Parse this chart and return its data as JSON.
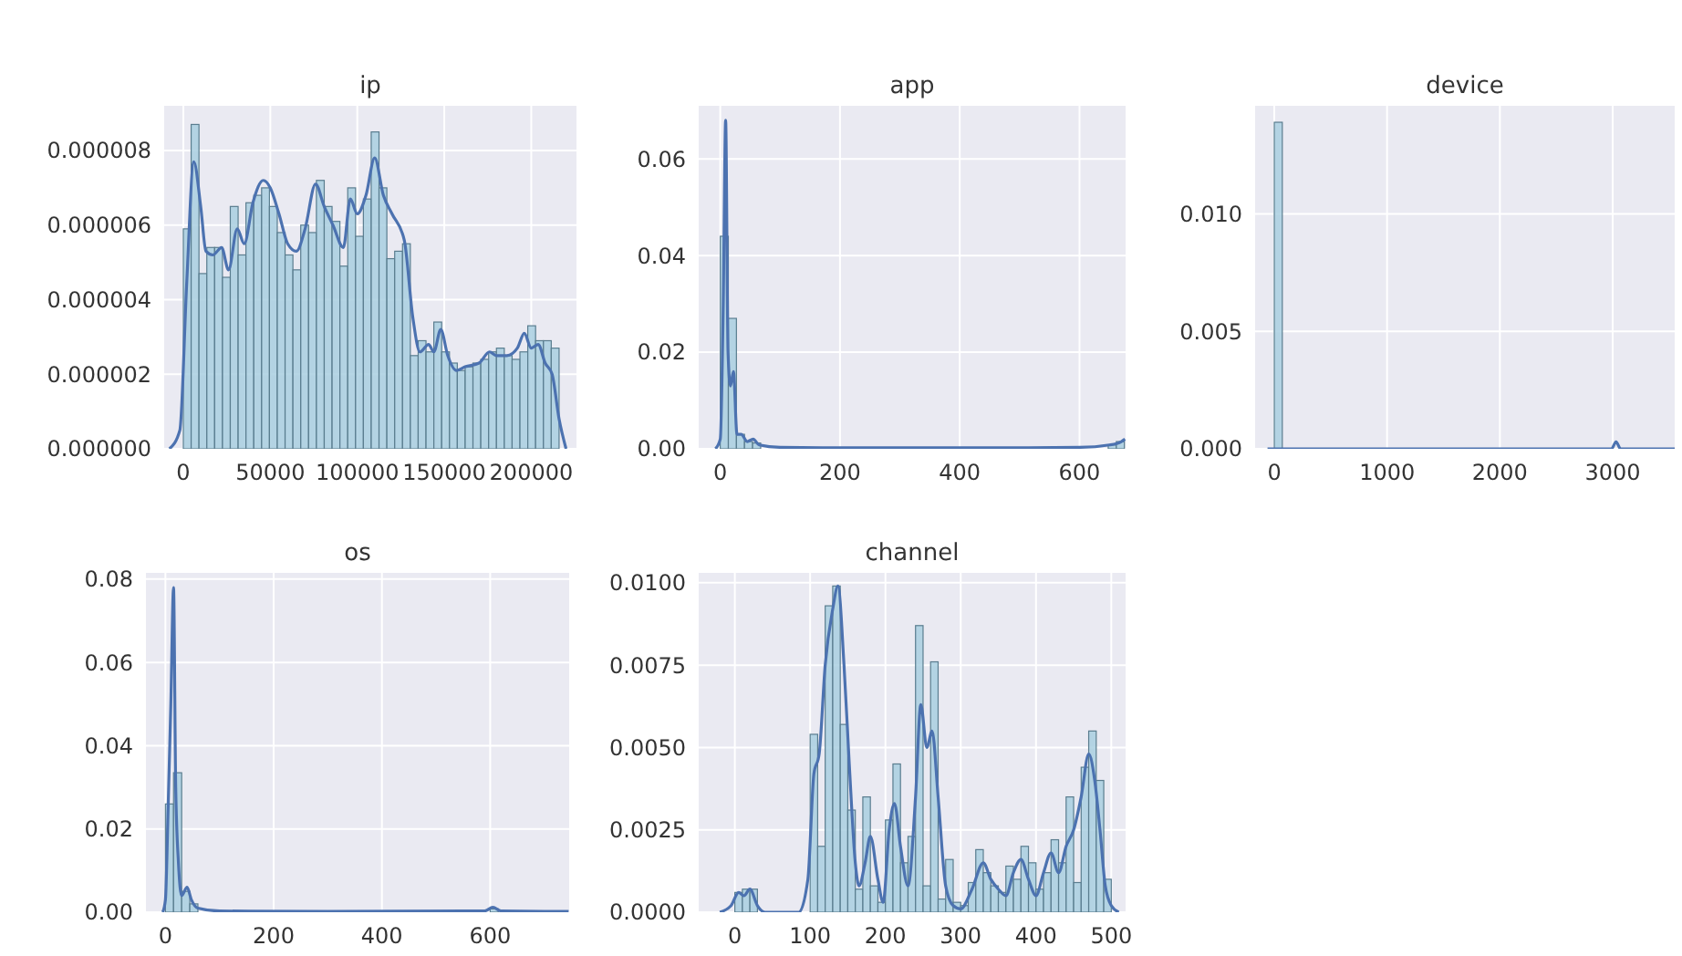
{
  "chart_data": [
    {
      "type": "histogram",
      "title": "ip",
      "color": "#a9cfe0",
      "grid": true,
      "bins": [
        0,
        4500,
        9000,
        13500,
        18000,
        22500,
        27000,
        31500,
        36000,
        40500,
        45000,
        49500,
        54000,
        58500,
        63000,
        67500,
        72000,
        76500,
        81000,
        85500,
        90000,
        94500,
        99000,
        103500,
        108000,
        112500,
        117000,
        121500,
        126000,
        130500,
        135000,
        139500,
        144000,
        148500,
        153000,
        157500,
        162000,
        166500,
        171000,
        175500,
        180000,
        184500,
        189000,
        193500,
        198000,
        202500,
        207000,
        211500,
        216000
      ],
      "values": [
        5.9e-06,
        8.7e-06,
        4.7e-06,
        5.4e-06,
        5.4e-06,
        4.6e-06,
        6.5e-06,
        5.2e-06,
        6.6e-06,
        6.8e-06,
        7e-06,
        6.5e-06,
        5.8e-06,
        5.2e-06,
        4.8e-06,
        6e-06,
        5.8e-06,
        7.2e-06,
        6.5e-06,
        6.1e-06,
        4.9e-06,
        7e-06,
        5.7e-06,
        6.7e-06,
        8.5e-06,
        7e-06,
        5.1e-06,
        5.3e-06,
        5.5e-06,
        2.5e-06,
        2.9e-06,
        2.6e-06,
        3.4e-06,
        2.6e-06,
        2.3e-06,
        2.1e-06,
        2.2e-06,
        2.3e-06,
        2.4e-06,
        2.6e-06,
        2.7e-06,
        2.5e-06,
        2.4e-06,
        2.6e-06,
        3.3e-06,
        2.9e-06,
        2.9e-06,
        2.7e-06
      ],
      "series": [
        {
          "type": "line",
          "color": "#4c72b0",
          "x": [
            -8000,
            -2000,
            2000,
            6000,
            10000,
            13000,
            17000,
            22000,
            26000,
            31000,
            35000,
            40000,
            46000,
            50000,
            55000,
            60000,
            65000,
            70000,
            76000,
            81000,
            86000,
            92000,
            96000,
            100000,
            105000,
            110000,
            115000,
            120000,
            127000,
            132000,
            136000,
            141000,
            144000,
            148000,
            152000,
            157000,
            162000,
            170000,
            176000,
            180000,
            186000,
            192000,
            196000,
            200000,
            204000,
            208000,
            212000,
            216000,
            220000
          ],
          "values": [
            0,
            5e-07,
            4.5e-06,
            7.7e-06,
            6.5e-06,
            5.3e-06,
            5.2e-06,
            5.4e-06,
            4.8e-06,
            5.9e-06,
            5.5e-06,
            6.6e-06,
            7.2e-06,
            7e-06,
            6.3e-06,
            5.5e-06,
            5.3e-06,
            5.9e-06,
            7.1e-06,
            6.5e-06,
            6e-06,
            5.4e-06,
            6.7e-06,
            6.3e-06,
            6.8e-06,
            7.8e-06,
            6.8e-06,
            6.3e-06,
            5.6e-06,
            3.5e-06,
            2.6e-06,
            2.8e-06,
            2.6e-06,
            3.2e-06,
            2.5e-06,
            2.1e-06,
            2.2e-06,
            2.3e-06,
            2.6e-06,
            2.5e-06,
            2.5e-06,
            2.7e-06,
            3.1e-06,
            2.7e-06,
            2.8e-06,
            2.3e-06,
            2e-06,
            8e-07,
            0
          ]
        }
      ],
      "xlim": [
        -11000,
        226000
      ],
      "xticks": [
        0,
        50000,
        100000,
        150000,
        200000
      ],
      "ylim": [
        0,
        9.2e-06
      ],
      "yticks": [
        {
          "value": 0,
          "label": "0.000000"
        },
        {
          "value": 2e-06,
          "label": "0.000002"
        },
        {
          "value": 4e-06,
          "label": "0.000004"
        },
        {
          "value": 6e-06,
          "label": "0.000006"
        },
        {
          "value": 8e-06,
          "label": "0.000008"
        }
      ]
    },
    {
      "type": "histogram",
      "title": "app",
      "color": "#a9cfe0",
      "grid": true,
      "bins": [
        0,
        13.5,
        27,
        40.5,
        54,
        67.5,
        81,
        94.5,
        108,
        121.5,
        135,
        148.5,
        162,
        175.5,
        189,
        202.5,
        216,
        229.5,
        243,
        256.5,
        270,
        283.5,
        297,
        310.5,
        324,
        337.5,
        351,
        364.5,
        378,
        391.5,
        405,
        418.5,
        432,
        445.5,
        459,
        472.5,
        486,
        499.5,
        513,
        526.5,
        540,
        553.5,
        567,
        580.5,
        594,
        607.5,
        621,
        634.5,
        648,
        661.5,
        675
      ],
      "values": [
        0.044,
        0.027,
        0.003,
        0.0015,
        0.0012,
        null,
        0,
        0,
        0,
        0,
        0,
        0,
        0,
        0,
        0,
        0,
        0,
        0,
        0,
        0,
        0,
        0,
        0,
        0,
        0,
        0,
        0,
        0,
        0,
        0,
        0,
        0,
        0,
        0,
        0,
        0,
        0,
        0,
        0,
        0,
        0,
        0,
        0,
        0,
        0,
        0,
        0,
        0,
        0.0008,
        0.0015
      ],
      "series": [
        {
          "type": "line",
          "color": "#4c72b0",
          "x": [
            -8,
            0,
            5,
            9,
            13,
            17,
            22,
            28,
            35,
            45,
            55,
            65,
            100,
            200,
            400,
            600,
            650,
            670,
            676
          ],
          "values": [
            0,
            0.002,
            0.03,
            0.068,
            0.02,
            0.013,
            0.016,
            0.003,
            0.003,
            0.0015,
            0.002,
            0.0008,
            0.0003,
            0.0002,
            0.0002,
            0.0003,
            0.0008,
            0.0015,
            0.002
          ]
        }
      ],
      "xlim": [
        -36,
        677
      ],
      "xticks": [
        0,
        200,
        400,
        600
      ],
      "ylim": [
        0,
        0.071
      ],
      "yticks": [
        {
          "value": 0,
          "label": "0.00"
        },
        0.02,
        0.04,
        0.06
      ]
    },
    {
      "type": "histogram",
      "title": "device",
      "color": "#a9cfe0",
      "grid": true,
      "bins": [
        0,
        71,
        142,
        213,
        284,
        355,
        426,
        497,
        568,
        639,
        710,
        781,
        852,
        923,
        994,
        1065,
        1136,
        1207,
        1278,
        1349,
        1420,
        1491,
        1562,
        1633,
        1704,
        1775,
        1846,
        1917,
        1988,
        2059,
        2130,
        2201,
        2272,
        2343,
        2414,
        2485,
        2556,
        2627,
        2698,
        2769,
        2840,
        2911,
        2982,
        3053,
        3124,
        3195,
        3266,
        3337,
        3408,
        3479,
        3550
      ],
      "values": [
        0.0139,
        0,
        0,
        0,
        0,
        0,
        0,
        0,
        0,
        0,
        0,
        0,
        0,
        0,
        0,
        0,
        0,
        0,
        0,
        0,
        0,
        0,
        0,
        0,
        0,
        0,
        0,
        0,
        0,
        0,
        0,
        0,
        0,
        0,
        0,
        0,
        0,
        0,
        0,
        0,
        0,
        0,
        null,
        0,
        0,
        0,
        0,
        0,
        0,
        0
      ],
      "series": [
        {
          "type": "line",
          "color": "#4c72b0",
          "x": [
            -60,
            100,
            2900,
            2990,
            3030,
            3070,
            3200,
            3550
          ],
          "values": [
            0,
            0,
            0,
            0,
            0.0003,
            0,
            0,
            0
          ]
        }
      ],
      "xlim": [
        -170,
        3550
      ],
      "xticks": [
        0,
        1000,
        2000,
        3000
      ],
      "ylim": [
        0,
        0.0146
      ],
      "yticks": [
        {
          "value": 0,
          "label": "0.000"
        },
        0.005,
        {
          "value": 0.01,
          "label": "0.010"
        }
      ]
    },
    {
      "type": "histogram",
      "title": "os",
      "color": "#a9cfe0",
      "grid": true,
      "bins": [
        0,
        15,
        30,
        45,
        60,
        75,
        90,
        105,
        120,
        135,
        150,
        165,
        180,
        195,
        210,
        225,
        240,
        255,
        270,
        285,
        300,
        315,
        330,
        345,
        360,
        375,
        390,
        405,
        420,
        435,
        450,
        465,
        480,
        495,
        510,
        525,
        540,
        555,
        570,
        585,
        600,
        615,
        630,
        645,
        660,
        675,
        690,
        705,
        720,
        735,
        750
      ],
      "values": [
        0.026,
        0.0335,
        0.005,
        0.002,
        null,
        0,
        0,
        0,
        0,
        0,
        0,
        0,
        0,
        0,
        0,
        0,
        0,
        0,
        0,
        0,
        0,
        0,
        0,
        0,
        0,
        0,
        0,
        0,
        0,
        0,
        0,
        0,
        0,
        0,
        0,
        0,
        0,
        0,
        0,
        0,
        0.0008,
        0,
        0,
        0,
        0,
        0,
        0,
        0,
        0,
        0
      ],
      "series": [
        {
          "type": "line",
          "color": "#4c72b0",
          "x": [
            -5,
            0,
            5,
            10,
            15,
            19,
            24,
            30,
            40,
            48,
            60,
            100,
            300,
            590,
            605,
            620,
            700,
            745
          ],
          "values": [
            0,
            0.003,
            0.025,
            0.05,
            0.078,
            0.03,
            0.012,
            0.004,
            0.006,
            0.003,
            0.001,
            0.0003,
            0.0002,
            0.0003,
            0.0012,
            0.0003,
            0.0002,
            0.0002
          ]
        }
      ],
      "xlim": [
        -36,
        746
      ],
      "xticks": [
        0,
        200,
        400,
        600
      ],
      "ylim": [
        0,
        0.0815
      ],
      "yticks": [
        {
          "value": 0,
          "label": "0.00"
        },
        0.02,
        0.04,
        0.06,
        0.08
      ]
    },
    {
      "type": "histogram",
      "title": "channel",
      "color": "#a9cfe0",
      "grid": true,
      "bins": [
        0,
        10,
        20,
        30,
        40,
        50,
        60,
        70,
        80,
        90,
        100,
        110,
        120,
        130,
        140,
        150,
        160,
        170,
        180,
        190,
        200,
        210,
        220,
        230,
        240,
        250,
        260,
        270,
        280,
        290,
        300,
        310,
        320,
        330,
        340,
        350,
        360,
        370,
        380,
        390,
        400,
        410,
        420,
        430,
        440,
        450,
        460,
        470,
        480,
        490,
        500
      ],
      "values": [
        0.0006,
        0.0007,
        0.0007,
        0,
        0,
        0,
        0,
        0,
        0,
        0,
        0.0054,
        0.002,
        0.0093,
        0.0099,
        0.0057,
        0.0031,
        0.0007,
        0.0035,
        0.0008,
        0.0003,
        0.0028,
        0.0045,
        0.0015,
        0.0023,
        0.0087,
        0.0008,
        0.0076,
        0.0004,
        0.0016,
        0.0003,
        0.0002,
        0.0009,
        0.0019,
        0.0012,
        0.0008,
        0.0006,
        0.0014,
        0.001,
        0.002,
        0.0015,
        0.0007,
        0.0012,
        0.0022,
        0.0015,
        0.0035,
        0.0009,
        0.0044,
        0.0055,
        0.004,
        0.001
      ],
      "series": [
        {
          "type": "line",
          "color": "#4c72b0",
          "x": [
            -20,
            -5,
            5,
            12,
            20,
            30,
            40,
            85,
            97,
            105,
            112,
            120,
            130,
            137,
            145,
            152,
            160,
            165,
            173,
            180,
            190,
            197,
            205,
            212,
            220,
            230,
            240,
            247,
            255,
            262,
            270,
            280,
            290,
            300,
            315,
            330,
            340,
            350,
            360,
            370,
            380,
            390,
            400,
            410,
            420,
            430,
            440,
            450,
            460,
            470,
            478,
            485,
            492,
            500,
            510
          ],
          "values": [
            0,
            0.0002,
            0.0006,
            0.0005,
            0.0007,
            0.0002,
            0,
            0,
            0.001,
            0.0042,
            0.0048,
            0.0075,
            0.0092,
            0.0099,
            0.0075,
            0.0045,
            0.0015,
            0.0008,
            0.0015,
            0.0023,
            0.001,
            0.0003,
            0.0025,
            0.0033,
            0.002,
            0.0008,
            0.0035,
            0.0063,
            0.005,
            0.0055,
            0.0035,
            0.0008,
            0.0002,
            0.0001,
            0.0007,
            0.0015,
            0.001,
            0.0007,
            0.0005,
            0.0012,
            0.0016,
            0.001,
            0.0005,
            0.0012,
            0.0018,
            0.0012,
            0.002,
            0.0025,
            0.0035,
            0.0048,
            0.004,
            0.0025,
            0.0008,
            0.0002,
            0
          ]
        }
      ],
      "xlim": [
        -48,
        519
      ],
      "xticks": [
        0,
        100,
        200,
        300,
        400,
        500
      ],
      "ylim": [
        0,
        0.0103
      ],
      "yticks": [
        {
          "value": 0,
          "label": "0.0000"
        },
        {
          "value": 0.0025,
          "label": "0.0025"
        },
        {
          "value": 0.005,
          "label": "0.0050"
        },
        {
          "value": 0.0075,
          "label": "0.0075"
        },
        {
          "value": 0.01,
          "label": "0.0100"
        }
      ]
    }
  ]
}
